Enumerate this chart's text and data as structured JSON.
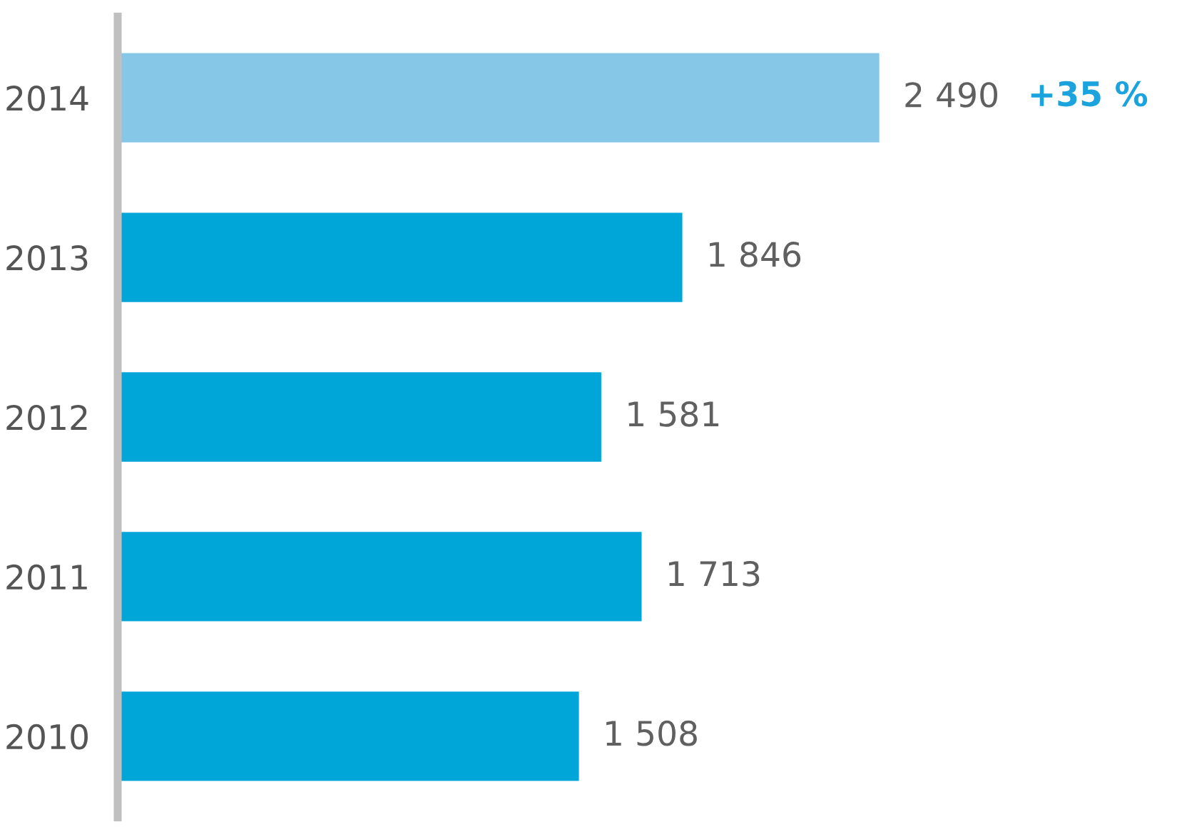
{
  "chart_data": {
    "type": "bar",
    "orientation": "horizontal",
    "categories": [
      "2014",
      "2013",
      "2012",
      "2011",
      "2010"
    ],
    "values": [
      2490,
      1846,
      1581,
      1713,
      1508
    ],
    "colors": [
      "#86c7e8",
      "#00a6d8",
      "#00a6d8",
      "#00a6d8",
      "#00a6d8"
    ],
    "value_labels": [
      "2 490",
      "1 846",
      "1 581",
      "1 713",
      "1 508"
    ],
    "annotations": [
      "+35 %"
    ],
    "tick_labels": "y",
    "grid": false,
    "legend": false
  }
}
